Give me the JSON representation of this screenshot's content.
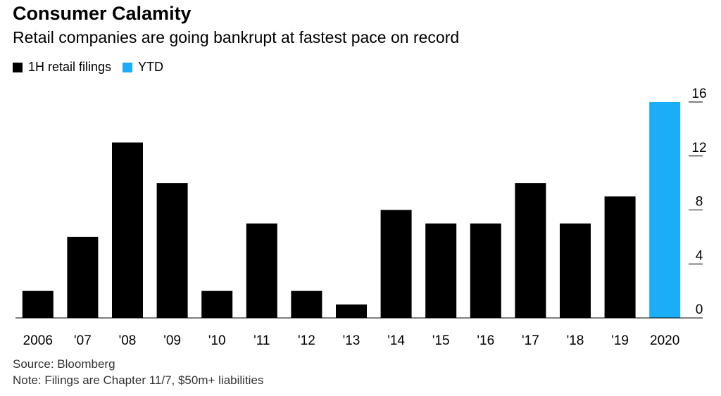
{
  "chart_data": {
    "type": "bar",
    "title": "Consumer Calamity",
    "subtitle": "Retail companies are going bankrupt at fastest pace on record",
    "categories": [
      "2006",
      "'07",
      "'08",
      "'09",
      "'10",
      "'11",
      "'12",
      "'13",
      "'14",
      "'15",
      "'16",
      "'17",
      "'18",
      "'19",
      "2020"
    ],
    "series": [
      {
        "name": "1H retail filings",
        "color": "#000000",
        "values": [
          2,
          6,
          13,
          10,
          2,
          7,
          2,
          1,
          8,
          7,
          7,
          10,
          7,
          9,
          null
        ]
      },
      {
        "name": "YTD",
        "color": "#1BADF8",
        "values": [
          null,
          null,
          null,
          null,
          null,
          null,
          null,
          null,
          null,
          null,
          null,
          null,
          null,
          null,
          16
        ]
      }
    ],
    "ylim": [
      0,
      16
    ],
    "yticks": [
      0,
      4,
      8,
      12,
      16
    ],
    "yaxis_position": "right",
    "grid": false,
    "legend_position": "top-left",
    "source": "Source: Bloomberg",
    "note": "Note: Filings are Chapter 11/7, $50m+ liabilities"
  }
}
